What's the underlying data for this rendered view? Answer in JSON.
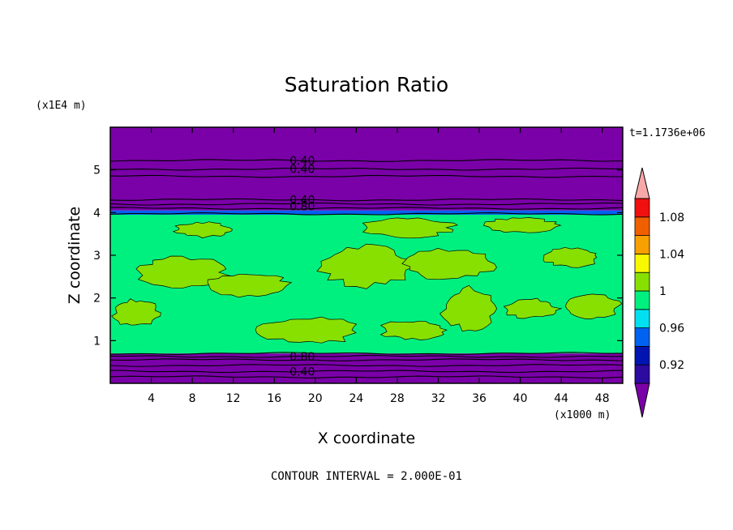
{
  "chart_data": {
    "type": "heatmap",
    "title": "Saturation Ratio",
    "xlabel": "X coordinate",
    "ylabel": "Z coordinate",
    "x_unit": "(x1000 m)",
    "y_unit": "(x1E4 m)",
    "time_label": "t=1.1736e+06",
    "footer": "CONTOUR INTERVAL = 2.000E-01",
    "xlim": [
      0,
      50
    ],
    "ylim": [
      0,
      6
    ],
    "x_ticks": [
      4,
      8,
      12,
      16,
      20,
      24,
      28,
      32,
      36,
      40,
      44,
      48
    ],
    "y_ticks": [
      1,
      2,
      3,
      4,
      5
    ],
    "colorbar": {
      "levels": [
        0.9,
        0.92,
        0.94,
        0.96,
        0.98,
        1.0,
        1.02,
        1.04,
        1.06,
        1.08,
        1.1
      ],
      "colors": [
        "#7a00a8",
        "#2d0aa0",
        "#0015b0",
        "#0062f0",
        "#00e0f0",
        "#00f080",
        "#88e000",
        "#f8f800",
        "#f8a000",
        "#f06000",
        "#f01010",
        "#f8a8a8"
      ],
      "tick_labels": [
        {
          "value": 0.92,
          "label": "0.92"
        },
        {
          "value": 0.96,
          "label": "0.96"
        },
        {
          "value": 1.0,
          "label": "1"
        },
        {
          "value": 1.04,
          "label": "1.04"
        },
        {
          "value": 1.08,
          "label": "1.08"
        }
      ]
    },
    "bands": [
      {
        "z_from": 0.0,
        "z_to": 0.7,
        "value": 0.5,
        "color": "#7a00a8"
      },
      {
        "z_from": 0.7,
        "z_to": 3.95,
        "value": 0.99,
        "color": "#00f080"
      },
      {
        "z_from": 3.95,
        "z_to": 4.05,
        "value": 0.96,
        "color": "#0062f0"
      },
      {
        "z_from": 4.05,
        "z_to": 6.0,
        "value": 0.5,
        "color": "#7a00a8"
      }
    ],
    "contour_lines_z": [
      0.15,
      0.28,
      0.42,
      0.55,
      0.63,
      0.7,
      3.97,
      4.1,
      4.2,
      4.3,
      4.85,
      5.02,
      5.22
    ],
    "contour_labels": [
      {
        "x": 17.5,
        "z": 5.22,
        "label": "0.40"
      },
      {
        "x": 17.5,
        "z": 5.02,
        "label": "0.40"
      },
      {
        "x": 17.5,
        "z": 4.3,
        "label": "0.40"
      },
      {
        "x": 17.5,
        "z": 4.15,
        "label": "0.80"
      },
      {
        "x": 17.5,
        "z": 0.63,
        "label": "0.80"
      },
      {
        "x": 17.5,
        "z": 0.28,
        "label": "0.40"
      }
    ],
    "supersaturated_patches": [
      {
        "x": [
          2,
          12
        ],
        "z": [
          2.2,
          3.0
        ]
      },
      {
        "x": [
          0,
          5
        ],
        "z": [
          1.3,
          2.0
        ]
      },
      {
        "x": [
          9,
          18
        ],
        "z": [
          2.0,
          2.6
        ]
      },
      {
        "x": [
          14,
          25
        ],
        "z": [
          0.9,
          1.6
        ]
      },
      {
        "x": [
          20,
          30
        ],
        "z": [
          2.2,
          3.3
        ]
      },
      {
        "x": [
          24,
          34
        ],
        "z": [
          3.4,
          3.9
        ]
      },
      {
        "x": [
          28,
          38
        ],
        "z": [
          2.4,
          3.2
        ]
      },
      {
        "x": [
          32,
          38
        ],
        "z": [
          1.2,
          2.3
        ]
      },
      {
        "x": [
          38,
          44
        ],
        "z": [
          1.5,
          2.0
        ]
      },
      {
        "x": [
          44,
          50
        ],
        "z": [
          1.5,
          2.1
        ]
      },
      {
        "x": [
          42,
          48
        ],
        "z": [
          2.7,
          3.2
        ]
      },
      {
        "x": [
          6,
          12
        ],
        "z": [
          3.4,
          3.8
        ]
      },
      {
        "x": [
          36,
          44
        ],
        "z": [
          3.5,
          3.9
        ]
      },
      {
        "x": [
          26,
          33
        ],
        "z": [
          1.0,
          1.5
        ]
      }
    ]
  }
}
